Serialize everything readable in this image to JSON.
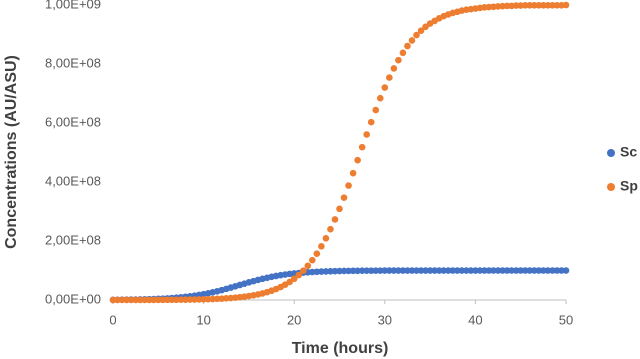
{
  "chart_data": {
    "type": "scatter",
    "x_label": "Time (hours)",
    "y_label": "Concentrations (AU/ASU)",
    "x": [
      0,
      0.5,
      1,
      1.5,
      2,
      2.5,
      3,
      3.5,
      4,
      4.5,
      5,
      5.5,
      6,
      6.5,
      7,
      7.5,
      8,
      8.5,
      9,
      9.5,
      10,
      10.5,
      11,
      11.5,
      12,
      12.5,
      13,
      13.5,
      14,
      14.5,
      15,
      15.5,
      16,
      16.5,
      17,
      17.5,
      18,
      18.5,
      19,
      19.5,
      20,
      20.5,
      21,
      21.5,
      22,
      22.5,
      23,
      23.5,
      24,
      24.5,
      25,
      25.5,
      26,
      26.5,
      27,
      27.5,
      28,
      28.5,
      29,
      29.5,
      30,
      30.5,
      31,
      31.5,
      32,
      32.5,
      33,
      33.5,
      34,
      34.5,
      35,
      35.5,
      36,
      36.5,
      37,
      37.5,
      38,
      38.5,
      39,
      39.5,
      40,
      40.5,
      41,
      41.5,
      42,
      42.5,
      43,
      43.5,
      44,
      44.5,
      45,
      45.5,
      46,
      46.5,
      47,
      47.5,
      48,
      48.5,
      49,
      49.5,
      50
    ],
    "series": [
      {
        "name": "Sc",
        "color": "#4472c4",
        "values": [
          667000.0,
          797000.0,
          952000.0,
          1140000.0,
          1360000.0,
          1620000.0,
          1940000.0,
          2310000.0,
          2750000.0,
          3280000.0,
          3910000.0,
          4630000.0,
          5500000.0,
          6510000.0,
          7700000.0,
          9080000.0,
          10700000.0,
          12500000.0,
          14600000.0,
          17000000.0,
          19700000.0,
          22700000.0,
          26000000.0,
          29600000.0,
          33500000.0,
          37700000.0,
          42000000.0,
          46400000.0,
          50900000.0,
          55400000.0,
          59800000.0,
          64000000.0,
          68000000.0,
          71800000.0,
          75300000.0,
          78500000.0,
          81400000.0,
          84000000.0,
          86300000.0,
          88300000.0,
          90000000.0,
          91500000.0,
          92800000.0,
          93900000.0,
          94900000.0,
          95700000.0,
          96300000.0,
          96900000.0,
          97400000.0,
          97800000.0,
          98200000.0,
          98500000.0,
          98700000.0,
          98900000.0,
          99100000.0,
          99300000.0,
          99400000.0,
          99500000.0,
          99600000.0,
          99600000.0,
          99700000.0,
          99700000.0,
          99800000.0,
          99800000.0,
          99800000.0,
          99800000.0,
          99900000.0,
          99900000.0,
          99900000.0,
          99900000.0,
          99900000.0,
          99900000.0,
          99900000.0,
          99900000.0,
          99900000.0,
          99900000.0,
          99900000.0,
          99900000.0,
          99900000.0,
          99900000.0,
          99900000.0,
          100000000.0,
          100000000.0,
          100000000.0,
          100000000.0,
          100000000.0,
          100000000.0,
          100000000.0,
          100000000.0,
          100000000.0,
          100000000.0,
          100000000.0,
          100000000.0,
          100000000.0,
          100000000.0,
          100000000.0,
          100000000.0,
          100000000.0,
          100000000.0,
          100000000.0,
          100000000.0
        ]
      },
      {
        "name": "Sp",
        "color": "#ed7d31",
        "values": [
          71000.0,
          84000.0,
          100000.0,
          120000.0,
          140000.0,
          170000.0,
          200000.0,
          240000.0,
          290000.0,
          340000.0,
          410000.0,
          490000.0,
          580000.0,
          690000.0,
          820000.0,
          980000.0,
          1160000.0,
          1390000.0,
          1650000.0,
          1970000.0,
          2340000.0,
          2790000.0,
          3320000.0,
          3950000.0,
          4700000.0,
          5600000.0,
          6660000.0,
          7920000.0,
          9420000.0,
          11200000.0,
          13300000.0,
          15800000.0,
          18800000.0,
          22300000.0,
          26500000.0,
          31400000.0,
          37200000.0,
          43900000.0,
          51900000.0,
          61200000.0,
          72100000.0,
          84700000.0,
          99300000.0,
          116000000.0,
          135000000.0,
          157000000.0,
          182000000.0,
          209000000.0,
          240000000.0,
          273000000.0,
          309000000.0,
          347000000.0,
          388000000.0,
          430000000.0,
          474000000.0,
          518000000.0,
          561000000.0,
          603000000.0,
          644000000.0,
          684000000.0,
          720000000.0,
          754000000.0,
          785000000.0,
          813000000.0,
          838000000.0,
          861000000.0,
          880000000.0,
          898000000.0,
          913000000.0,
          926000000.0,
          937000000.0,
          946000000.0,
          955000000.0,
          962000000.0,
          968000000.0,
          973000000.0,
          977000000.0,
          981000000.0,
          984000000.0,
          986000000.0,
          988000000.0,
          990000000.0,
          992000000.0,
          993000000.0,
          994000000.0,
          995000000.0,
          996000000.0,
          997000000.0,
          997000000.0,
          998000000.0,
          998000000.0,
          999000000.0,
          999000000.0,
          999000000.0,
          999000000.0,
          999000000.0,
          999000000.0,
          999000000.0,
          999000000.0,
          999000000.0,
          1000000000.0
        ]
      }
    ],
    "xlim": [
      0,
      50
    ],
    "xticks": [
      0,
      10,
      20,
      30,
      40,
      50
    ],
    "ylim": [
      0,
      1000000000
    ],
    "yticks": [
      {
        "value": 0,
        "label": "0,00E+00"
      },
      {
        "value": 200000000,
        "label": "2,00E+08"
      },
      {
        "value": 400000000,
        "label": "4,00E+08"
      },
      {
        "value": 600000000,
        "label": "6,00E+08"
      },
      {
        "value": 800000000,
        "label": "8,00E+08"
      },
      {
        "value": 1000000000,
        "label": "1,00E+09"
      }
    ],
    "grid": false,
    "legend": "right"
  }
}
